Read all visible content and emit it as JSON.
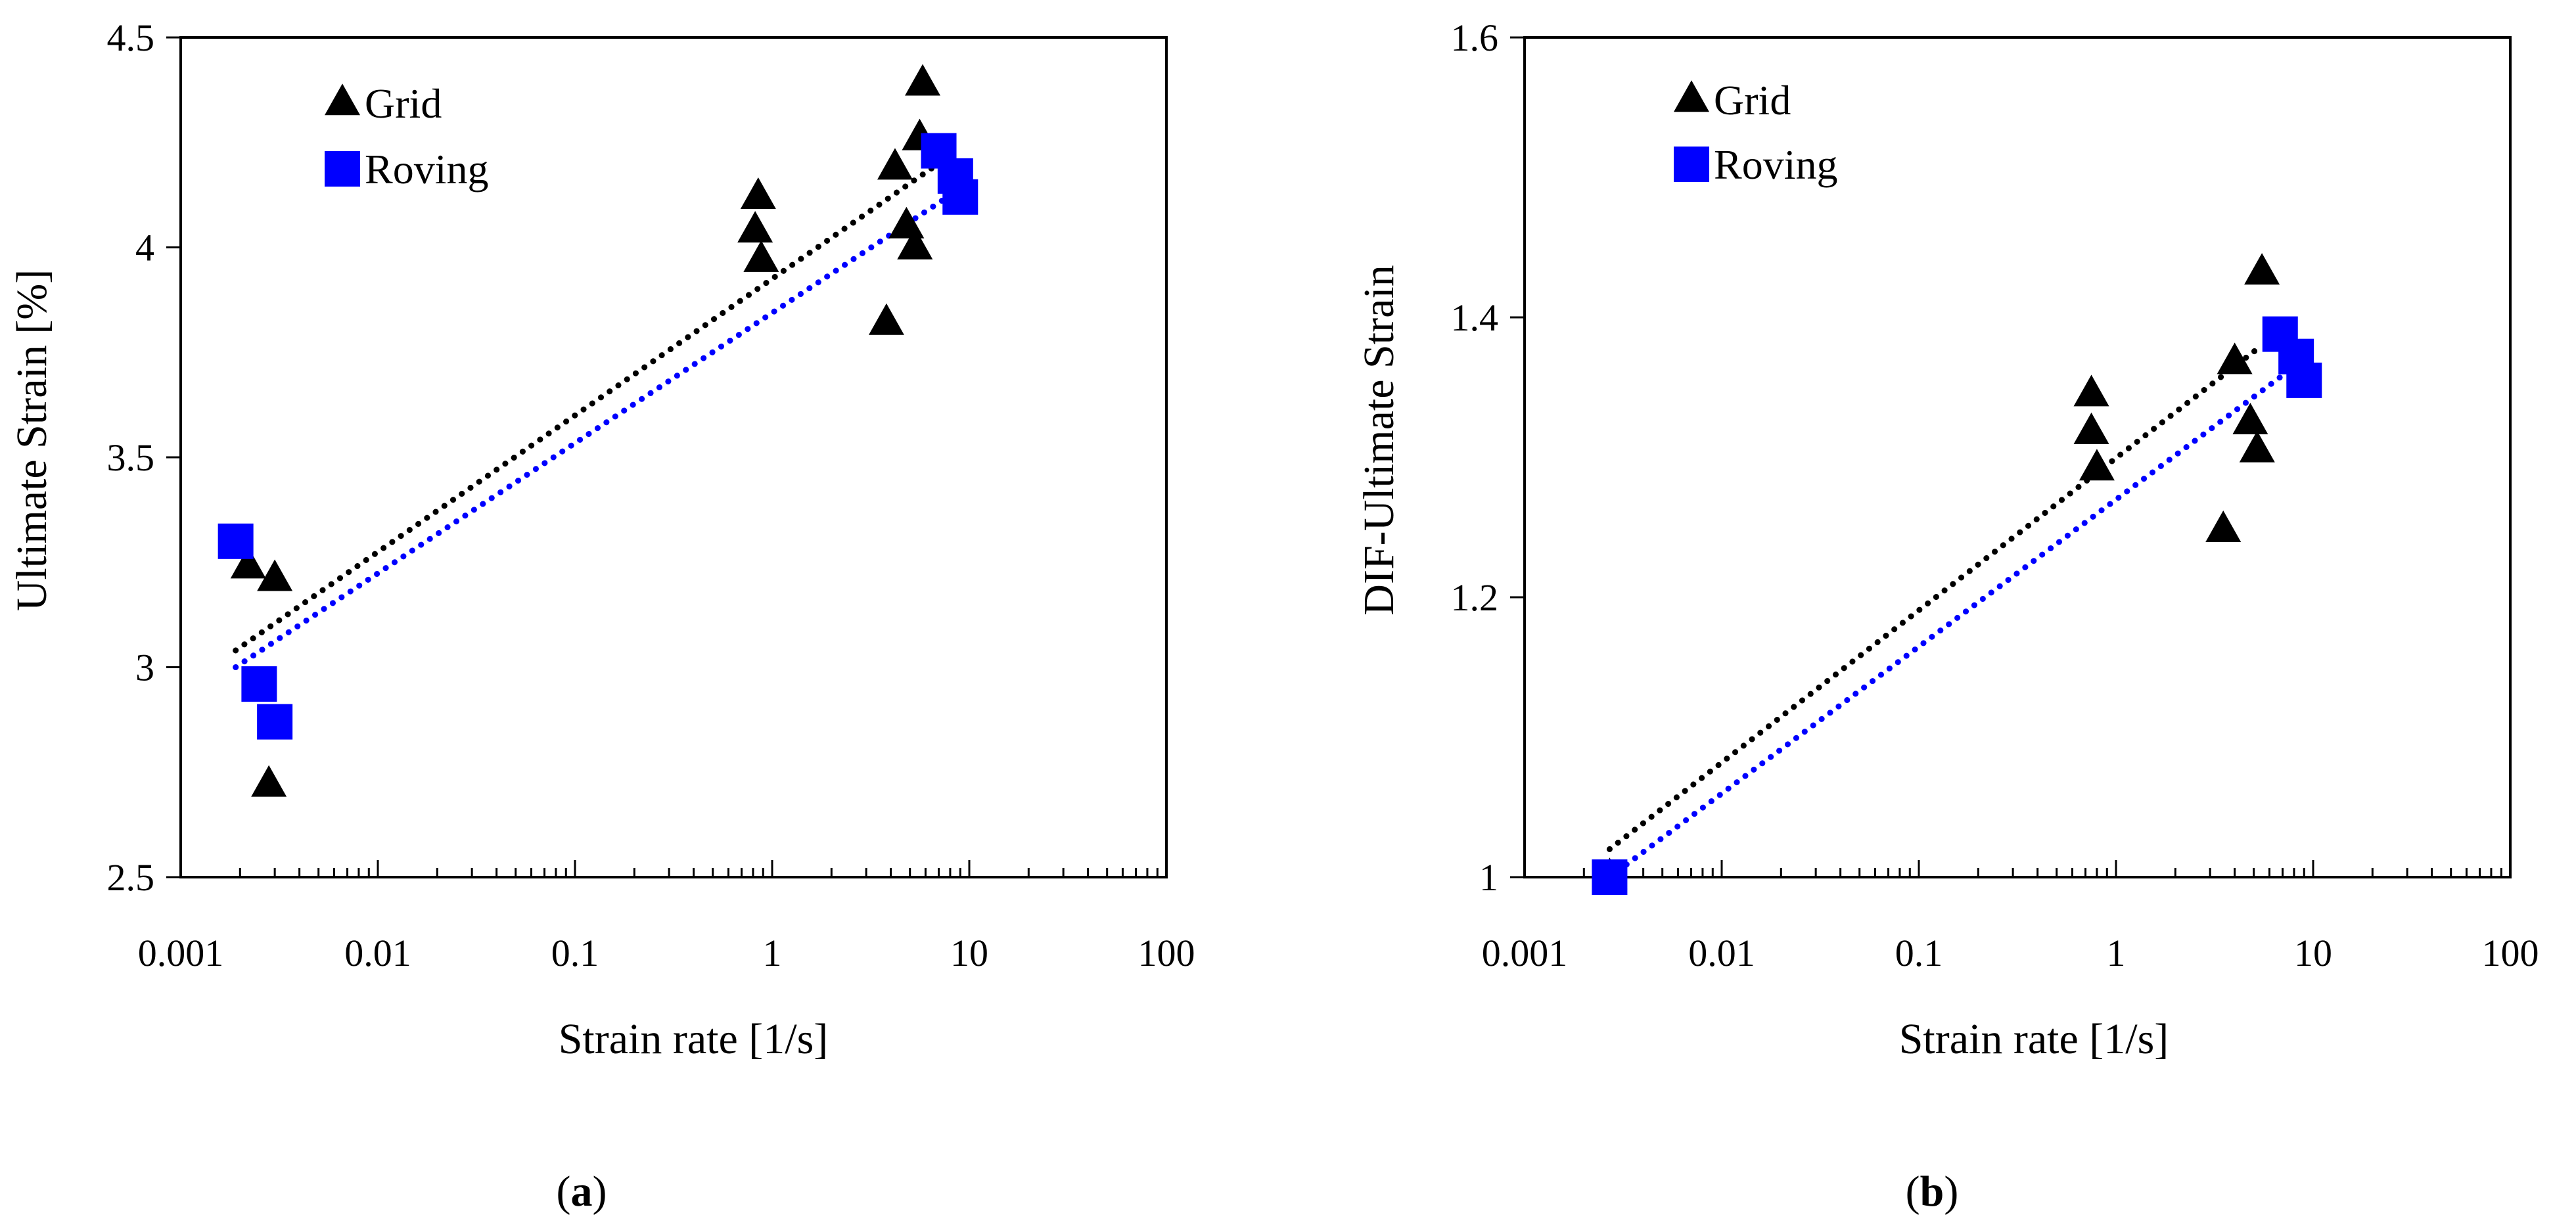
{
  "colors": {
    "grid": "#000000",
    "roving": "#0000ff",
    "background": "#ffffff"
  },
  "chart_data": [
    {
      "type": "scatter",
      "panel_label": {
        "open": "(",
        "letter": "a",
        "close": ")"
      },
      "xlabel": "Strain rate [1/s]",
      "ylabel": "Ultimate Strain [%]",
      "xscale": "log",
      "xlim": [
        0.001,
        100
      ],
      "ylim": [
        2.5,
        4.5
      ],
      "x_ticks": [
        0.001,
        0.01,
        0.1,
        1,
        10,
        100
      ],
      "x_tick_labels": [
        "0.001",
        "0.01",
        "0.1",
        "1",
        "10",
        "100"
      ],
      "y_ticks": [
        2.5,
        3,
        3.5,
        4,
        4.5
      ],
      "y_tick_labels": [
        "2.5",
        "3",
        "3.5",
        "4",
        "4.5"
      ],
      "legend": {
        "position": "top-left",
        "entries": [
          "Grid",
          "Roving"
        ]
      },
      "series": [
        {
          "name": "Grid",
          "marker": "triangle",
          "color": "#000000",
          "points": [
            [
              0.0022,
              3.24
            ],
            [
              0.003,
              3.21
            ],
            [
              0.0028,
              2.72
            ],
            [
              0.85,
              4.12
            ],
            [
              0.82,
              4.04
            ],
            [
              0.88,
              3.97
            ],
            [
              4.2,
              4.19
            ],
            [
              3.8,
              3.82
            ],
            [
              4.8,
              4.05
            ],
            [
              5.3,
              4.0
            ],
            [
              5.6,
              4.26
            ],
            [
              5.8,
              4.39
            ]
          ],
          "trendline": {
            "style": "dotted",
            "from": [
              0.0019,
              3.04
            ],
            "to": [
              7.0,
              4.2
            ]
          }
        },
        {
          "name": "Roving",
          "marker": "square",
          "color": "#0000ff",
          "points": [
            [
              0.0019,
              3.3
            ],
            [
              0.0025,
              2.96
            ],
            [
              0.003,
              2.87
            ],
            [
              7.0,
              4.23
            ],
            [
              8.5,
              4.17
            ],
            [
              9.0,
              4.12
            ]
          ],
          "trendline": {
            "style": "dotted",
            "from": [
              0.0019,
              3.0
            ],
            "to": [
              9.0,
              4.14
            ]
          }
        }
      ]
    },
    {
      "type": "scatter",
      "panel_label": {
        "open": "(",
        "letter": "b",
        "close": ")"
      },
      "xlabel": "Strain rate [1/s]",
      "ylabel": "DIF-Ultimate Strain",
      "xscale": "log",
      "xlim": [
        0.001,
        100
      ],
      "ylim": [
        1,
        1.6
      ],
      "x_ticks": [
        0.001,
        0.01,
        0.1,
        1,
        10,
        100
      ],
      "x_tick_labels": [
        "0.001",
        "0.01",
        "0.1",
        "1",
        "10",
        "100"
      ],
      "y_ticks": [
        1,
        1.2,
        1.4,
        1.6
      ],
      "y_tick_labels": [
        "1",
        "1.2",
        "1.4",
        "1.6"
      ],
      "legend": {
        "position": "top-left",
        "entries": [
          "Grid",
          "Roving"
        ]
      },
      "series": [
        {
          "name": "Grid",
          "marker": "triangle",
          "color": "#000000",
          "points": [
            [
              0.0027,
              1.0
            ],
            [
              0.75,
              1.345
            ],
            [
              0.75,
              1.318
            ],
            [
              0.8,
              1.292
            ],
            [
              3.5,
              1.248
            ],
            [
              4.0,
              1.368
            ],
            [
              4.8,
              1.325
            ],
            [
              5.2,
              1.305
            ],
            [
              5.5,
              1.432
            ]
          ],
          "trendline": {
            "style": "dotted",
            "from": [
              0.0027,
              1.02
            ],
            "to": [
              5.5,
              1.38
            ]
          }
        },
        {
          "name": "Roving",
          "marker": "square",
          "color": "#0000ff",
          "points": [
            [
              0.0027,
              1.0
            ],
            [
              6.8,
              1.388
            ],
            [
              8.2,
              1.372
            ],
            [
              9.0,
              1.355
            ]
          ],
          "trendline": {
            "style": "dotted",
            "from": [
              0.0027,
              1.0
            ],
            "to": [
              9.0,
              1.37
            ]
          }
        }
      ]
    }
  ]
}
